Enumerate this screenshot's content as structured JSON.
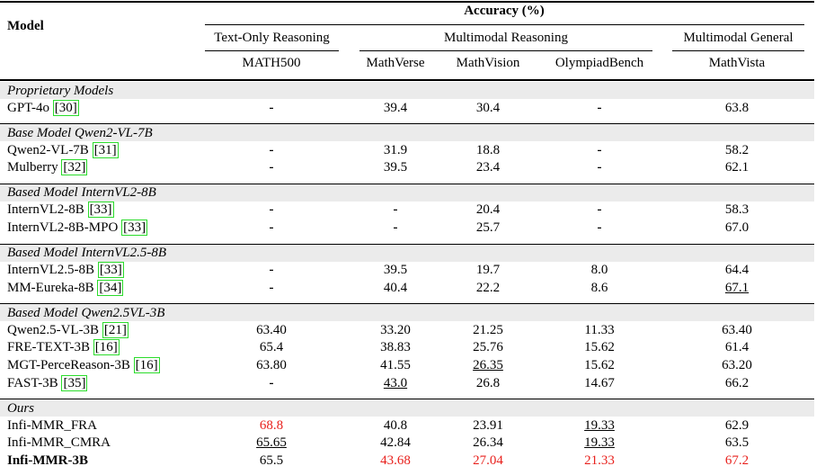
{
  "header": {
    "model": "Model",
    "accuracy": "Accuracy (%)",
    "groups": [
      "Text-Only Reasoning",
      "Multimodal Reasoning",
      "Multimodal General"
    ],
    "columns": [
      "MATH500",
      "MathVerse",
      "MathVision",
      "OlympiadBench",
      "MathVista"
    ]
  },
  "sections": [
    {
      "title": "Proprietary Models",
      "rows": [
        {
          "model": {
            "name": "GPT-4o",
            "ref": "[30]"
          },
          "cells": [
            "-",
            "39.4",
            "30.4",
            "-",
            "63.8"
          ]
        }
      ]
    },
    {
      "title": "Base Model Qwen2-VL-7B",
      "rows": [
        {
          "model": {
            "name": "Qwen2-VL-7B",
            "ref": "[31]"
          },
          "cells": [
            "-",
            "31.9",
            "18.8",
            "-",
            "58.2"
          ]
        },
        {
          "model": {
            "name": "Mulberry",
            "ref": "[32]"
          },
          "cells": [
            "-",
            "39.5",
            "23.4",
            "-",
            "62.1"
          ]
        }
      ]
    },
    {
      "title": "Based Model InternVL2-8B",
      "rows": [
        {
          "model": {
            "name": "InternVL2-8B",
            "ref": "[33]"
          },
          "cells": [
            "-",
            "-",
            "20.4",
            "-",
            "58.3"
          ]
        },
        {
          "model": {
            "name": "InternVL2-8B-MPO",
            "ref": "[33]"
          },
          "cells": [
            "-",
            "-",
            "25.7",
            "-",
            "67.0"
          ]
        }
      ]
    },
    {
      "title": "Based Model InternVL2.5-8B",
      "rows": [
        {
          "model": {
            "name": "InternVL2.5-8B",
            "ref": "[33]"
          },
          "cells": [
            "-",
            "39.5",
            "19.7",
            "8.0",
            "64.4"
          ]
        },
        {
          "model": {
            "name": "MM-Eureka-8B",
            "ref": "[34]"
          },
          "cells": [
            "-",
            "40.4",
            "22.2",
            "8.6",
            {
              "text": "67.1",
              "underline": true
            }
          ]
        }
      ]
    },
    {
      "title": "Based Model Qwen2.5VL-3B",
      "rows": [
        {
          "model": {
            "name": "Qwen2.5-VL-3B",
            "ref": "[21]"
          },
          "cells": [
            "63.40",
            "33.20",
            "21.25",
            "11.33",
            "63.40"
          ]
        },
        {
          "model": {
            "name": "FRE-TEXT-3B",
            "ref": "[16]"
          },
          "cells": [
            "65.4",
            "38.83",
            "25.76",
            "15.62",
            "61.4"
          ]
        },
        {
          "model": {
            "name": "MGT-PerceReason-3B",
            "ref": "[16]"
          },
          "cells": [
            "63.80",
            "41.55",
            {
              "text": "26.35",
              "underline": true
            },
            "15.62",
            "63.20"
          ]
        },
        {
          "model": {
            "name": "FAST-3B",
            "ref": "[35]"
          },
          "cells": [
            "-",
            {
              "text": "43.0",
              "underline": true
            },
            "26.8",
            "14.67",
            "66.2"
          ]
        }
      ]
    },
    {
      "title": "Ours",
      "rows": [
        {
          "model": {
            "name": "Infi-MMR_FRA"
          },
          "cells": [
            {
              "text": "68.8",
              "color": "#e8201c"
            },
            "40.8",
            "23.91",
            {
              "text": "19.33",
              "underline": true
            },
            "62.9"
          ]
        },
        {
          "model": {
            "name": "Infi-MMR_CMRA"
          },
          "cells": [
            {
              "text": "65.65",
              "underline": true
            },
            "42.84",
            "26.34",
            {
              "text": "19.33",
              "underline": true
            },
            "63.5"
          ]
        },
        {
          "model": {
            "name": "Infi-MMR-3B",
            "bold": true
          },
          "cells": [
            "65.5",
            {
              "text": "43.68",
              "color": "#e8201c"
            },
            {
              "text": "27.04",
              "color": "#e8201c"
            },
            {
              "text": "21.33",
              "color": "#e8201c"
            },
            {
              "text": "67.2",
              "color": "#e8201c"
            }
          ]
        }
      ]
    }
  ]
}
